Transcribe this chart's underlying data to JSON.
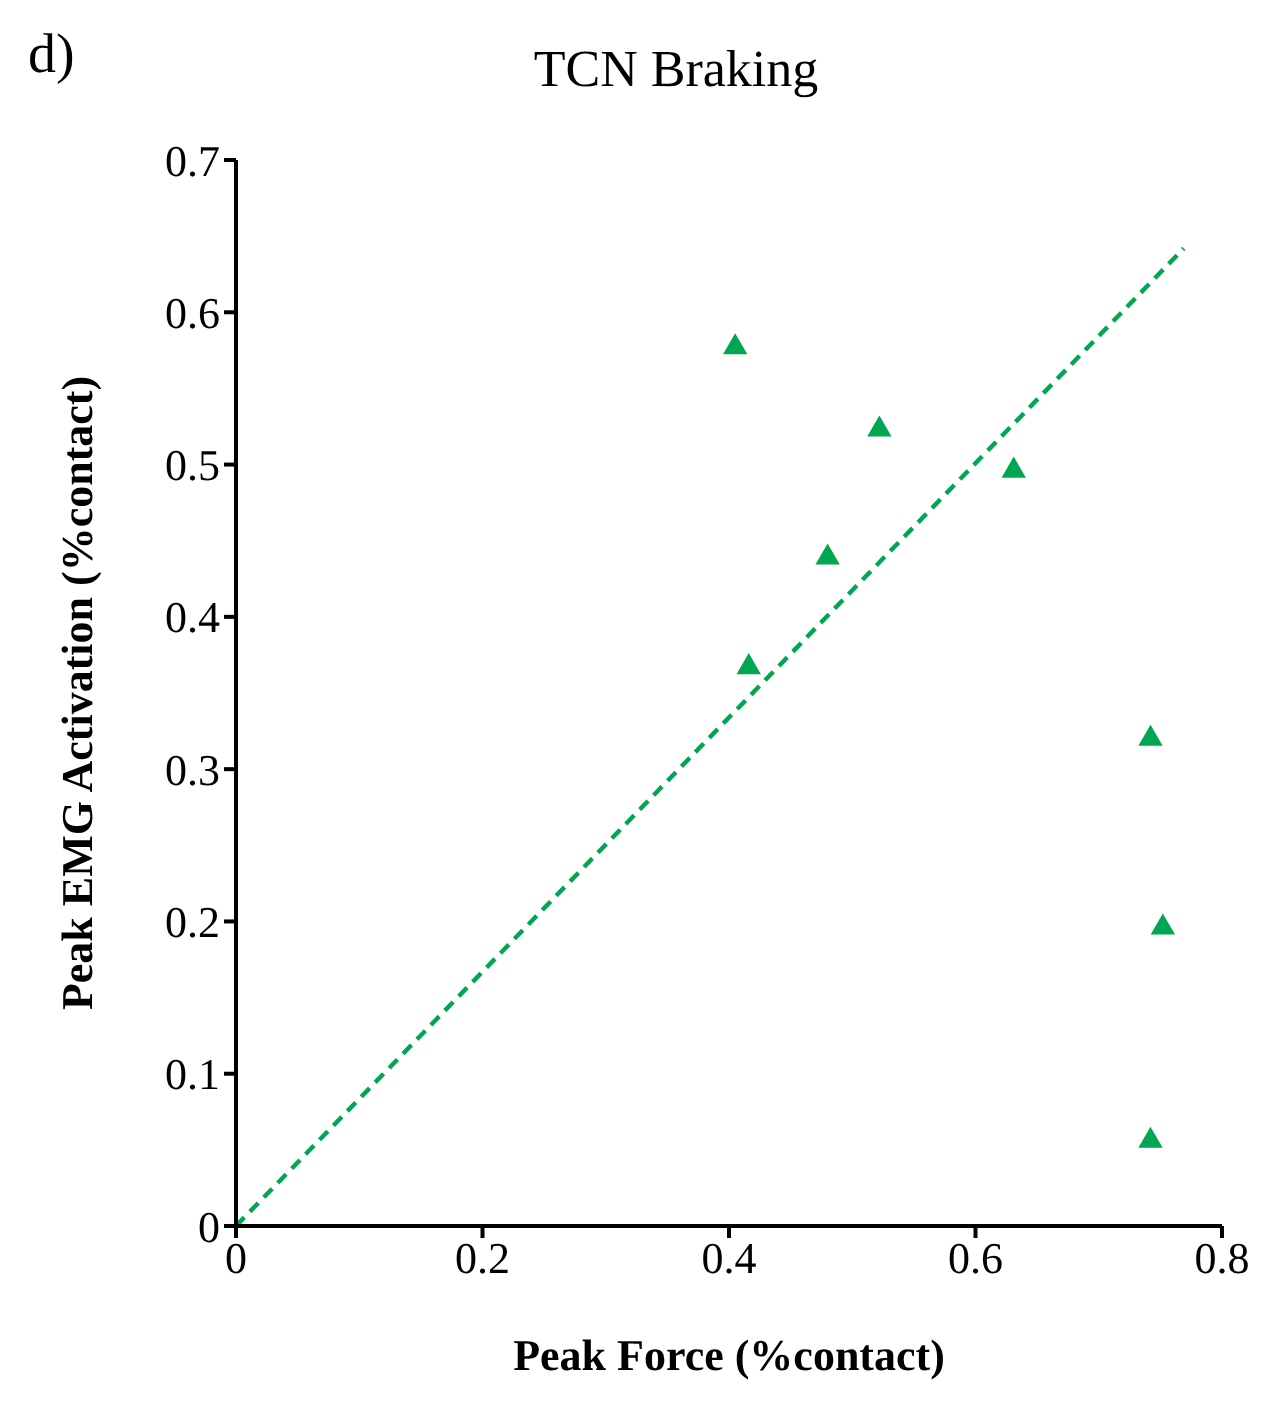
{
  "chart_data": {
    "type": "scatter",
    "title": "TCN Braking",
    "annotations": [
      "d)"
    ],
    "xlabel": "Peak Force (%contact)",
    "ylabel": "Peak EMG Activation (%contact)",
    "xlim": [
      0,
      0.8
    ],
    "xticks": [
      0,
      0.2,
      0.4,
      0.6,
      0.8
    ],
    "ylim": [
      0,
      0.7
    ],
    "yticks": [
      0,
      0.1,
      0.2,
      0.3,
      0.4,
      0.5,
      0.6,
      0.7
    ],
    "grid": false,
    "series": [
      {
        "type": "scatter",
        "color": "#00a651",
        "marker": "triangle",
        "x": [
          0.405,
          0.522,
          0.631,
          0.48,
          0.416,
          0.742,
          0.752,
          0.742
        ],
        "values": [
          0.577,
          0.523,
          0.496,
          0.439,
          0.367,
          0.32,
          0.196,
          0.056
        ]
      },
      {
        "type": "line",
        "color": "#00a651",
        "line_style": "dashed",
        "marker": "none",
        "x": [
          0,
          0.769
        ],
        "values": [
          0,
          0.642
        ]
      }
    ]
  }
}
